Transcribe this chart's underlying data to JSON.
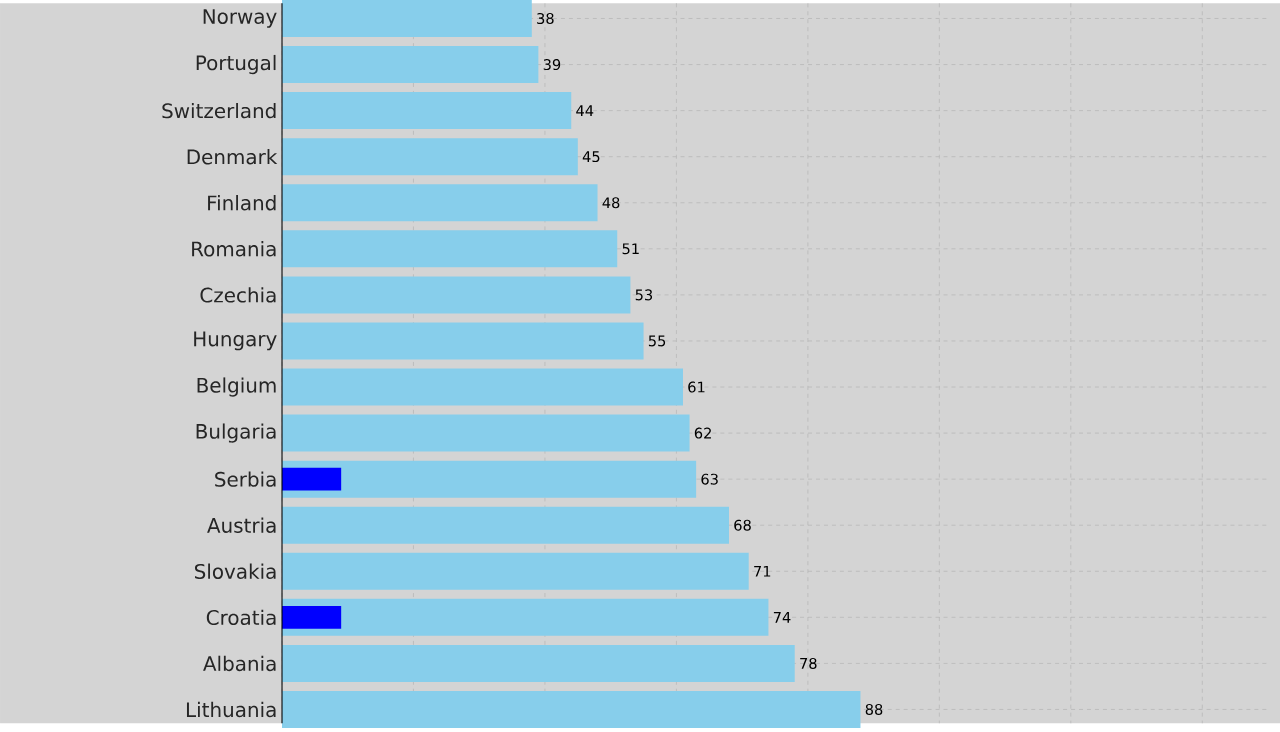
{
  "chart_data": {
    "type": "bar",
    "orientation": "horizontal",
    "categories": [
      "Norway",
      "Portugal",
      "Switzerland",
      "Denmark",
      "Finland",
      "Romania",
      "Czechia",
      "Hungary",
      "Belgium",
      "Bulgaria",
      "Serbia",
      "Austria",
      "Slovakia",
      "Croatia",
      "Albania",
      "Lithuania"
    ],
    "series": [
      {
        "color": "#87ceeb",
        "values": [
          38,
          39,
          44,
          45,
          48,
          51,
          53,
          55,
          61,
          62,
          63,
          68,
          71,
          74,
          78,
          88
        ],
        "value_labels": [
          "38",
          "39",
          "44",
          "45",
          "48",
          "51",
          "53",
          "55",
          "61",
          "62",
          "63",
          "68",
          "71",
          "74",
          "78",
          "88"
        ]
      },
      {
        "color": "#0000ff",
        "values": [
          null,
          null,
          null,
          null,
          null,
          null,
          null,
          null,
          null,
          null,
          9,
          null,
          null,
          9,
          null,
          null
        ]
      }
    ],
    "xlim": [
      0,
      150
    ],
    "xticks": [
      {
        "value": 0,
        "label": null
      },
      {
        "value": 20,
        "label": null
      },
      {
        "value": 40,
        "label": null
      },
      {
        "value": 60,
        "label": null
      },
      {
        "value": 80,
        "label": null
      },
      {
        "value": 100,
        "label": null
      },
      {
        "value": 120,
        "label": null
      },
      {
        "value": 140,
        "label": null
      }
    ],
    "tick_labels": "y",
    "grid": true
  }
}
